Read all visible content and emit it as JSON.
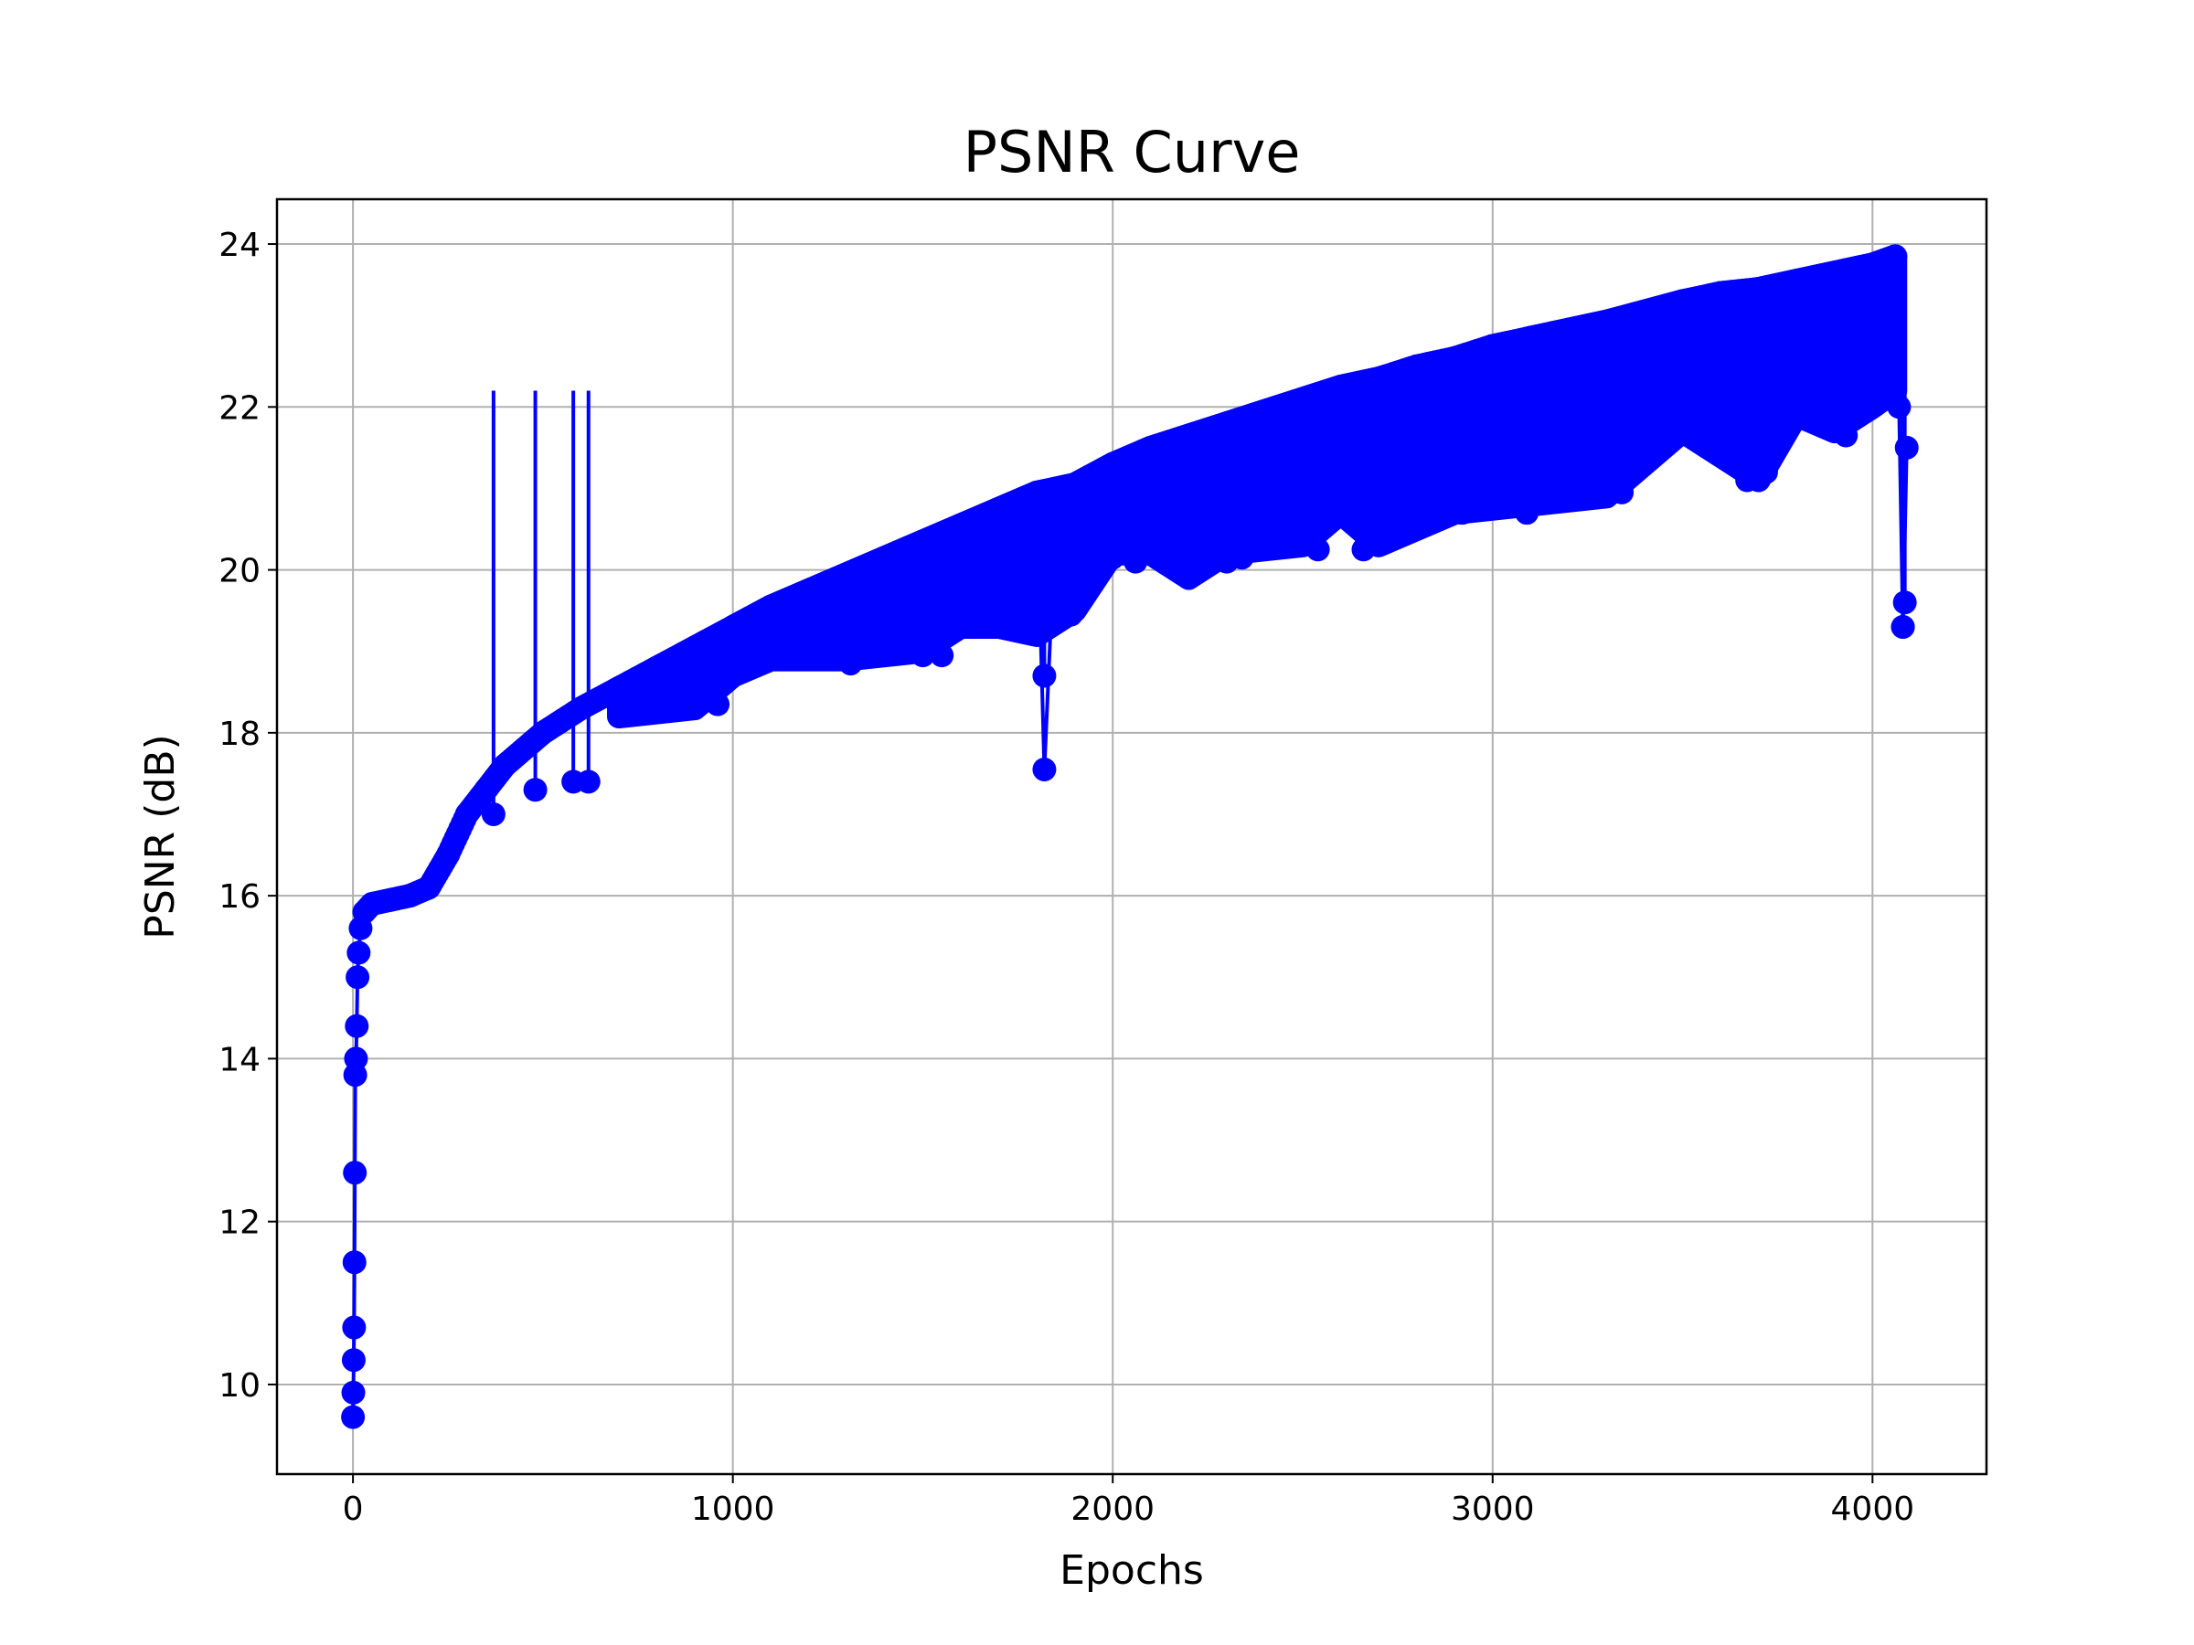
{
  "chart_data": {
    "type": "line",
    "title": "PSNR Curve",
    "xlabel": "Epochs",
    "ylabel": "PSNR (dB)",
    "xlim": [
      -200,
      4300
    ],
    "ylim": [
      8.9,
      24.55
    ],
    "xticks": [
      0,
      1000,
      2000,
      3000,
      4000
    ],
    "yticks": [
      10,
      12,
      14,
      16,
      18,
      20,
      22,
      24
    ],
    "grid": true,
    "markers": "circle",
    "series_color": "#0000ff",
    "series": [
      {
        "x": [
          0,
          1,
          2,
          3,
          4,
          5,
          6,
          8,
          10,
          12,
          15,
          20,
          30,
          50,
          100,
          150,
          200,
          250,
          300,
          350,
          400,
          500,
          600,
          700,
          800,
          900,
          1000,
          1100,
          1200,
          1300,
          1400,
          1500,
          1600,
          1700,
          1800,
          1820,
          1850,
          1900,
          2000,
          2100,
          2200,
          2300,
          2400,
          2500,
          2600,
          2700,
          2800,
          2900,
          3000,
          3100,
          3200,
          3300,
          3400,
          3500,
          3600,
          3700,
          3800,
          3900,
          4000,
          4060,
          4070,
          4080,
          4090
        ],
        "y": [
          9.6,
          9.9,
          10.3,
          10.7,
          11.5,
          12.6,
          13.8,
          14.0,
          14.4,
          15.0,
          15.3,
          15.6,
          15.8,
          15.9,
          15.95,
          16.0,
          16.1,
          16.5,
          17.0,
          17.3,
          17.6,
          18.0,
          18.3,
          18.55,
          18.8,
          19.05,
          19.3,
          19.55,
          19.75,
          19.95,
          20.15,
          20.35,
          20.55,
          20.75,
          20.95,
          17.55,
          20.7,
          21.05,
          21.3,
          21.5,
          21.65,
          21.8,
          21.95,
          22.1,
          22.25,
          22.35,
          22.5,
          22.6,
          22.75,
          22.85,
          22.95,
          23.05,
          23.15,
          23.3,
          23.4,
          23.45,
          23.55,
          23.65,
          23.75,
          23.85,
          22.0,
          19.3,
          21.5
        ],
        "band": {
          "x": [
            700,
            900,
            1000,
            1100,
            1300,
            1500,
            1600,
            1700,
            1800,
            1900,
            2000,
            2100,
            2200,
            2300,
            2500,
            2600,
            2700,
            2900,
            3100,
            3300,
            3500,
            3700,
            3800,
            3900,
            4000,
            4060
          ],
          "low": [
            18.2,
            18.3,
            18.7,
            18.9,
            18.9,
            19.0,
            19.3,
            19.3,
            19.2,
            19.5,
            20.2,
            20.2,
            19.9,
            20.2,
            20.3,
            20.7,
            20.3,
            20.7,
            20.8,
            20.9,
            21.7,
            21.1,
            21.9,
            21.7,
            22.0,
            22.2
          ],
          "high": [
            18.55,
            18.9,
            19.3,
            19.55,
            19.95,
            20.35,
            20.55,
            20.75,
            20.95,
            21.05,
            21.3,
            21.5,
            21.65,
            21.8,
            22.1,
            22.25,
            22.35,
            22.6,
            22.85,
            23.05,
            23.3,
            23.45,
            23.55,
            23.65,
            23.75,
            23.85
          ]
        },
        "dips": [
          {
            "x": 370,
            "y": 17.0
          },
          {
            "x": 480,
            "y": 17.3
          },
          {
            "x": 580,
            "y": 17.4
          },
          {
            "x": 620,
            "y": 17.4
          },
          {
            "x": 870,
            "y": 18.3
          },
          {
            "x": 960,
            "y": 18.35
          },
          {
            "x": 1310,
            "y": 18.85
          },
          {
            "x": 1400,
            "y": 19.05
          },
          {
            "x": 1500,
            "y": 18.95
          },
          {
            "x": 1550,
            "y": 18.95
          },
          {
            "x": 1820,
            "y": 18.7
          },
          {
            "x": 1890,
            "y": 19.45
          },
          {
            "x": 2000,
            "y": 20.15
          },
          {
            "x": 2060,
            "y": 20.1
          },
          {
            "x": 2200,
            "y": 19.9
          },
          {
            "x": 2300,
            "y": 20.1
          },
          {
            "x": 2340,
            "y": 20.15
          },
          {
            "x": 2540,
            "y": 20.25
          },
          {
            "x": 2660,
            "y": 20.25
          },
          {
            "x": 2920,
            "y": 20.7
          },
          {
            "x": 3030,
            "y": 20.9
          },
          {
            "x": 3090,
            "y": 20.7
          },
          {
            "x": 3200,
            "y": 21.0
          },
          {
            "x": 3340,
            "y": 20.95
          },
          {
            "x": 3670,
            "y": 21.1
          },
          {
            "x": 3720,
            "y": 21.2
          },
          {
            "x": 3800,
            "y": 22.0
          },
          {
            "x": 3930,
            "y": 21.65
          },
          {
            "x": 4080,
            "y": 19.3
          },
          {
            "x": 4085,
            "y": 19.6
          }
        ]
      }
    ]
  }
}
